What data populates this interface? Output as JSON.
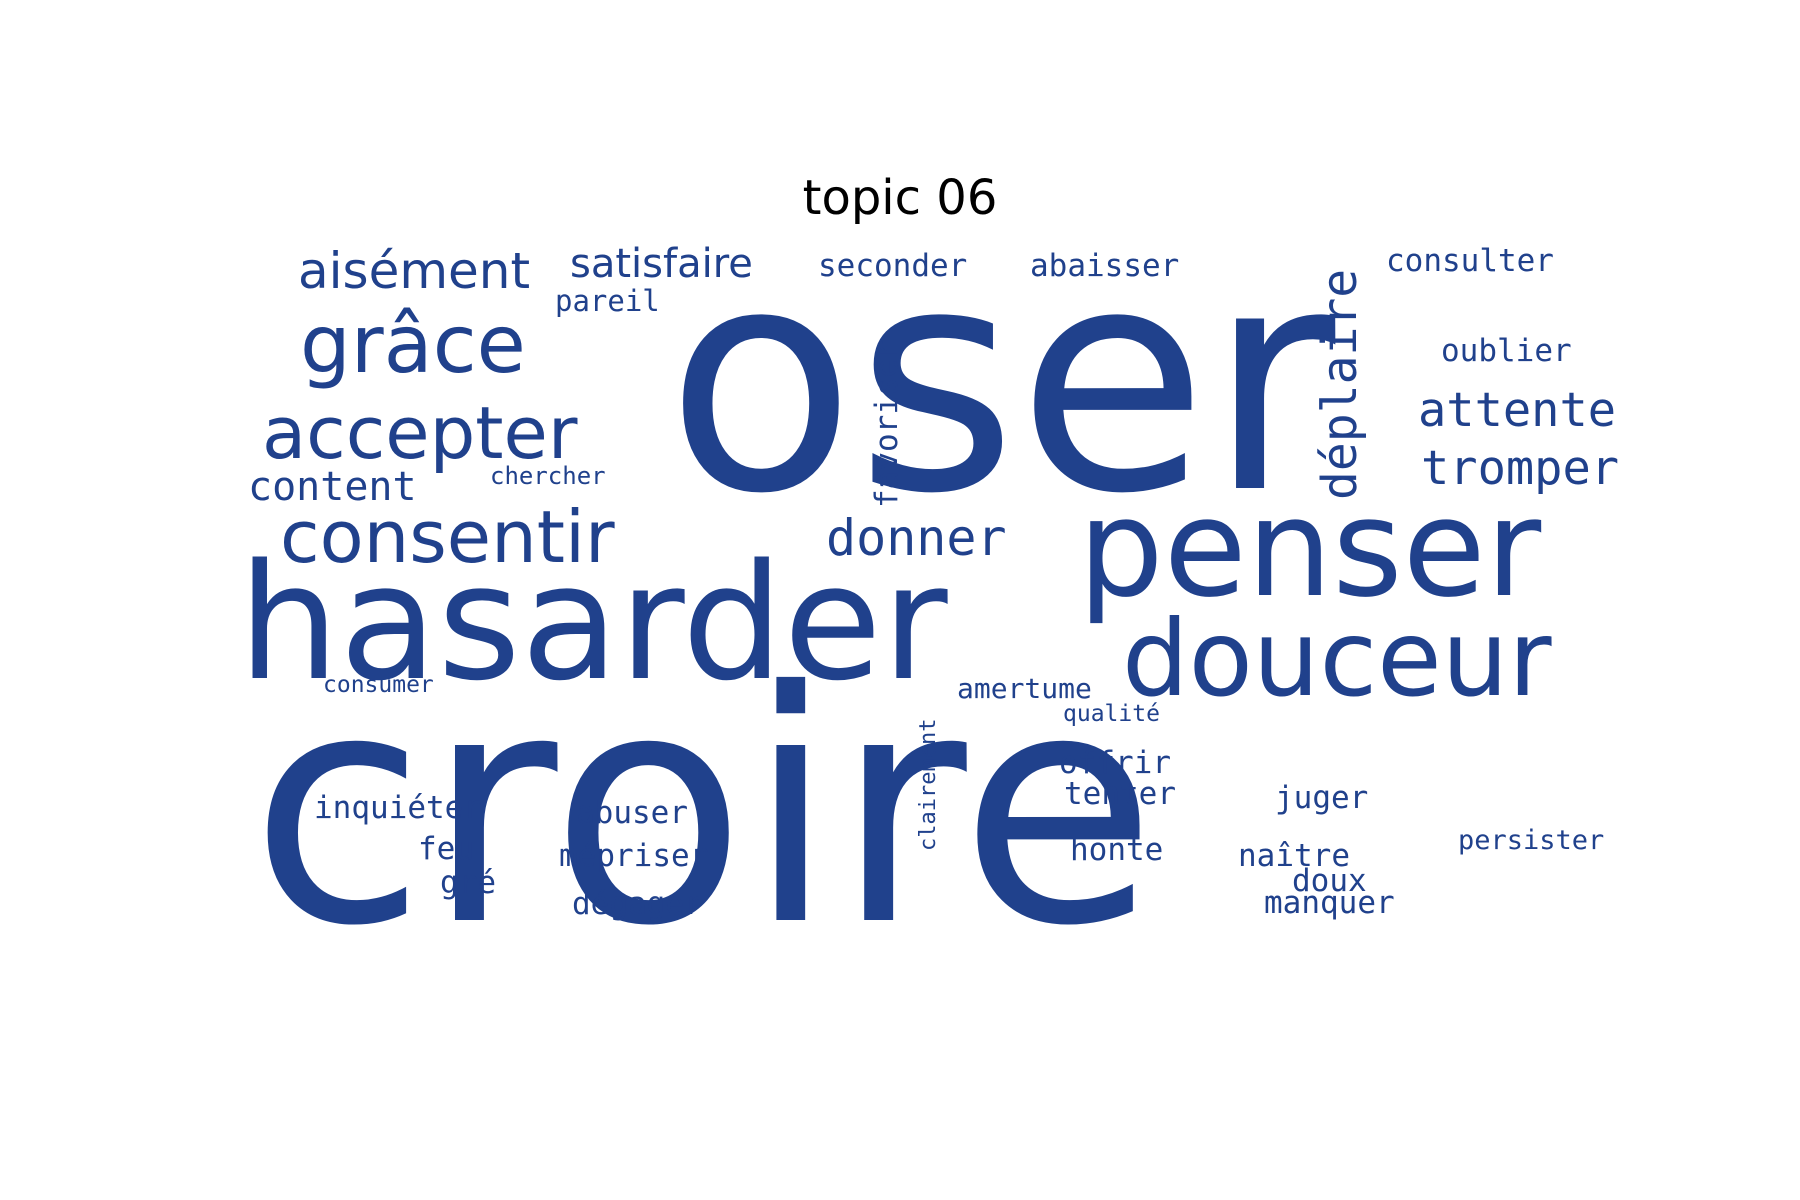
{
  "title": "topic 06",
  "word_color": "#20418c",
  "words": [
    {
      "text": "oser",
      "style": "prop"
    },
    {
      "text": "croire",
      "style": "prop"
    },
    {
      "text": "hasarder",
      "style": "prop"
    },
    {
      "text": "penser",
      "style": "prop"
    },
    {
      "text": "douceur",
      "style": "prop"
    },
    {
      "text": "consentir",
      "style": "prop"
    },
    {
      "text": "accepter",
      "style": "prop"
    },
    {
      "text": "grâce",
      "style": "prop"
    },
    {
      "text": "aisément",
      "style": "prop"
    },
    {
      "text": "satisfaire",
      "style": "prop"
    },
    {
      "text": "seconder",
      "style": "mono"
    },
    {
      "text": "abaisser",
      "style": "mono"
    },
    {
      "text": "consulter",
      "style": "mono"
    },
    {
      "text": "pareil",
      "style": "mono"
    },
    {
      "text": "déplaire",
      "style": "mono"
    },
    {
      "text": "favoriser",
      "style": "mono"
    },
    {
      "text": "oublier",
      "style": "mono"
    },
    {
      "text": "attente",
      "style": "mono"
    },
    {
      "text": "tromper",
      "style": "mono"
    },
    {
      "text": "content",
      "style": "mono"
    },
    {
      "text": "chercher",
      "style": "mono"
    },
    {
      "text": "donner",
      "style": "mono"
    },
    {
      "text": "consumer",
      "style": "mono"
    },
    {
      "text": "amertume",
      "style": "mono"
    },
    {
      "text": "qualité",
      "style": "mono"
    },
    {
      "text": "clairement",
      "style": "mono"
    },
    {
      "text": "offrir",
      "style": "mono"
    },
    {
      "text": "tenter",
      "style": "mono"
    },
    {
      "text": "juger",
      "style": "mono"
    },
    {
      "text": "inquiéter",
      "style": "mono"
    },
    {
      "text": "abuser",
      "style": "mono"
    },
    {
      "text": "honte",
      "style": "mono"
    },
    {
      "text": "feu",
      "style": "mono"
    },
    {
      "text": "mépriser",
      "style": "mono"
    },
    {
      "text": "naître",
      "style": "mono"
    },
    {
      "text": "persister",
      "style": "mono"
    },
    {
      "text": "gré",
      "style": "mono"
    },
    {
      "text": "doux",
      "style": "mono"
    },
    {
      "text": "dégager",
      "style": "mono"
    },
    {
      "text": "manquer",
      "style": "mono"
    }
  ]
}
